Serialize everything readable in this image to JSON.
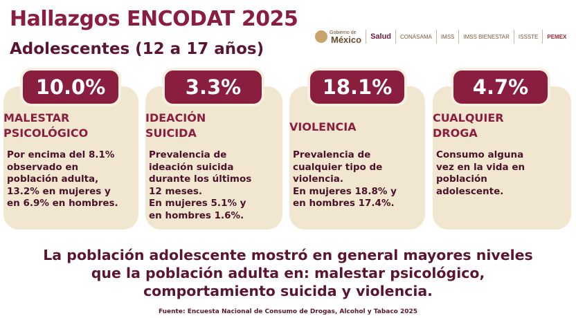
{
  "header": {
    "title": "Hallazgos ENCODAT 2025",
    "subtitle": "Adolescentes (12 a 17 años)"
  },
  "logos": [
    {
      "name": "gobierno-de-mexico",
      "line1": "Gobierno de",
      "line2": "México"
    },
    {
      "name": "salud",
      "label": "Salud"
    },
    {
      "name": "conasama",
      "label": "CONASAMA"
    },
    {
      "name": "imss",
      "label": "IMSS"
    },
    {
      "name": "imss-bienestar",
      "label": "IMSS BIENESTAR"
    },
    {
      "name": "issste",
      "label": "ISSSTE"
    },
    {
      "name": "pemex",
      "label": "PEMEX"
    }
  ],
  "cards": [
    {
      "value": "10.0%",
      "title": "MALESTAR\nPSICOLÓGICO",
      "text": "Por encima del 8.1%\nobservado en\npoblación adulta,\n13.2% en mujeres y\nen 6.9% en hombres."
    },
    {
      "value": "3.3%",
      "title": "IDEACIÓN\nSUICIDA",
      "text": "Prevalencia de\nideación suicida\ndurante los últimos\n12 meses.\nEn mujeres 5.1% y\nen hombres 1.6%."
    },
    {
      "value": "18.1%",
      "title": "VIOLENCIA",
      "text": "Prevalencia de\ncualquier tipo de\nviolencia.\nEn mujeres 18.8% y\nen hombres 17.4%."
    },
    {
      "value": "4.7%",
      "title": "CUALQUIER\nDROGA",
      "text": "Consumo alguna\nvez en la vida en\npoblación\nadolescente."
    }
  ],
  "summary": "La población adolescente mostró en general mayores niveles\nque la población adulta en: malestar psicológico,\ncomportamiento suicida y violencia.",
  "source": "Fuente: Encuesta Nacional de Consumo de Drogas, Alcohol y Tabaco 2025",
  "colors": {
    "primary": "#8a1e3f",
    "dark": "#5a1630",
    "card_bg": "#f1e6cf"
  }
}
